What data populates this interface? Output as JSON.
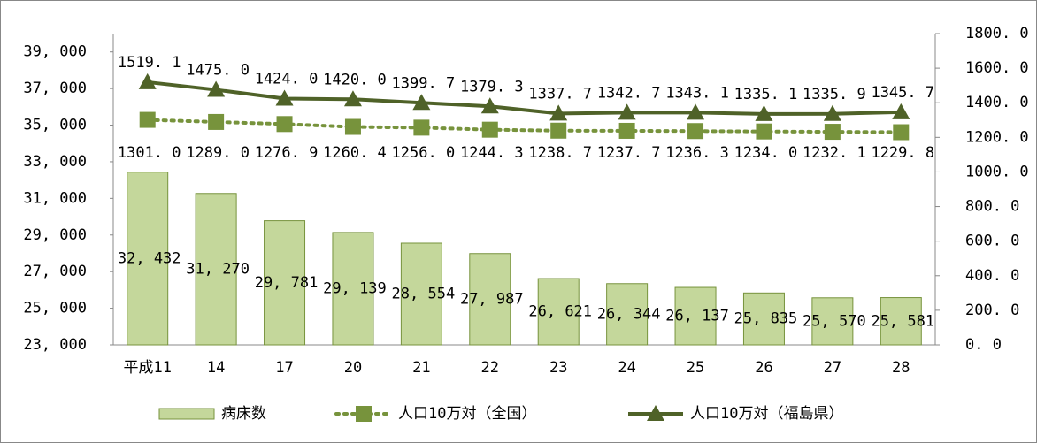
{
  "chart_data": {
    "type": "bar-line",
    "categories": [
      "平成11",
      "14",
      "17",
      "20",
      "21",
      "22",
      "23",
      "24",
      "25",
      "26",
      "27",
      "28"
    ],
    "series": [
      {
        "name": "病床数",
        "type": "bar",
        "color": "#c4d79b",
        "edge": "#77933c",
        "values": [
          32432,
          31270,
          29781,
          29139,
          28554,
          27987,
          26621,
          26344,
          26137,
          25835,
          25570,
          25581
        ],
        "value_labels": [
          "32, 432",
          "31, 270",
          "29, 781",
          "29, 139",
          "28, 554",
          "27, 987",
          "26, 621",
          "26, 344",
          "26, 137",
          "25, 835",
          "25, 570",
          "25, 581"
        ]
      },
      {
        "name": "人口10万対（全国）",
        "type": "line",
        "axis": "y2",
        "color": "#77933c",
        "dash": true,
        "marker": "square",
        "values": [
          1301.0,
          1289.0,
          1276.9,
          1260.4,
          1256.0,
          1244.3,
          1238.7,
          1237.7,
          1236.3,
          1234.0,
          1232.1,
          1229.8
        ],
        "value_labels": [
          "1301. 0",
          "1289. 0",
          "1276. 9",
          "1260. 4",
          "1256. 0",
          "1244. 3",
          "1238. 7",
          "1237. 7",
          "1236. 3",
          "1234. 0",
          "1232. 1",
          "1229. 8"
        ]
      },
      {
        "name": "人口10万対（福島県）",
        "type": "line",
        "axis": "y2",
        "color": "#4f6228",
        "dash": false,
        "marker": "triangle",
        "values": [
          1519.1,
          1475.0,
          1424.0,
          1420.0,
          1399.7,
          1379.3,
          1337.7,
          1342.7,
          1343.1,
          1335.1,
          1335.9,
          1345.7
        ],
        "value_labels": [
          "1519. 1",
          "1475. 0",
          "1424. 0",
          "1420. 0",
          "1399. 7",
          "1379. 3",
          "1337. 7",
          "1342. 7",
          "1343. 1",
          "1335. 1",
          "1335. 9",
          "1345. 7"
        ]
      }
    ],
    "ylim": [
      23000,
      40000
    ],
    "yticks": [
      {
        "value": 23000,
        "label": "23, 000"
      },
      {
        "value": 25000,
        "label": "25, 000"
      },
      {
        "value": 27000,
        "label": "27, 000"
      },
      {
        "value": 29000,
        "label": "29, 000"
      },
      {
        "value": 31000,
        "label": "31, 000"
      },
      {
        "value": 33000,
        "label": "33, 000"
      },
      {
        "value": 35000,
        "label": "35, 000"
      },
      {
        "value": 37000,
        "label": "37, 000"
      },
      {
        "value": 39000,
        "label": "39, 000"
      }
    ],
    "y2lim": [
      0,
      1800
    ],
    "y2ticks": [
      {
        "value": 0,
        "label": "0. 0"
      },
      {
        "value": 200,
        "label": "200. 0"
      },
      {
        "value": 400,
        "label": "400. 0"
      },
      {
        "value": 600,
        "label": "600. 0"
      },
      {
        "value": 800,
        "label": "800. 0"
      },
      {
        "value": 1000,
        "label": "1000. 0"
      },
      {
        "value": 1200,
        "label": "1200. 0"
      },
      {
        "value": 1400,
        "label": "1400. 0"
      },
      {
        "value": 1600,
        "label": "1600. 0"
      },
      {
        "value": 1800,
        "label": "1800. 0"
      }
    ],
    "legend": "bottom",
    "grid": false
  }
}
